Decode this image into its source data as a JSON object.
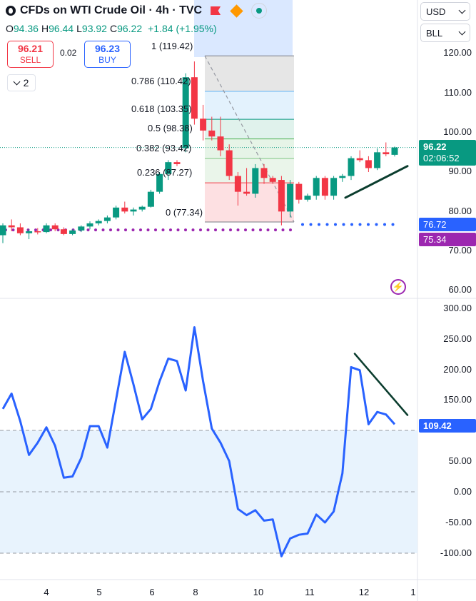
{
  "header": {
    "title": "CFDs on WTI Crude Oil · 4h · TVC",
    "ohlc": {
      "o_key": "O",
      "o_val": "94.36",
      "h_key": "H",
      "h_val": "96.44",
      "l_key": "L",
      "l_val": "93.92",
      "c_key": "C",
      "c_val": "96.22",
      "change": "+1.84 (+1.95%)"
    }
  },
  "trade": {
    "sell_price": "96.21",
    "sell_label": "SELL",
    "spread": "0.02",
    "buy_price": "96.23",
    "buy_label": "BUY"
  },
  "indicators_collapse": {
    "count": "2"
  },
  "top_right": {
    "currency": "USD",
    "unit": "BLL"
  },
  "colors": {
    "up": "#089981",
    "down": "#f23645",
    "accent": "#2962ff",
    "purple": "#9c27b0",
    "trend_line": "#0b3d2e"
  },
  "price_axis": {
    "labels": [
      "120.00",
      "110.00",
      "100.00",
      "90.00",
      "80.00",
      "70.00",
      "60.00"
    ],
    "last_price": "96.22",
    "countdown": "02:06:52",
    "blue_level": "76.72",
    "purple_level": "75.34"
  },
  "fib_levels": [
    {
      "label": "1 (119.42)",
      "color": "#787b86"
    },
    {
      "label": "0.786 (110.42)",
      "color": "#64b5f6"
    },
    {
      "label": "0.618 (103.35)",
      "color": "#089981"
    },
    {
      "label": "0.5 (98.38)",
      "color": "#4caf50"
    },
    {
      "label": "0.382 (93.42)",
      "color": "#81c784"
    },
    {
      "label": "0.236 (87.27)",
      "color": "#f23645"
    },
    {
      "label": "0 (77.34)",
      "color": "#787b86"
    }
  ],
  "oscillator": {
    "axis_labels": [
      "300.00",
      "250.00",
      "200.00",
      "150.00",
      "100.00",
      "50.00",
      "0.00",
      "-50.00",
      "-100.00"
    ],
    "value": "109.42",
    "series": [
      135,
      160,
      115,
      60,
      80,
      105,
      75,
      23,
      25,
      55,
      107,
      107,
      72,
      150,
      228,
      175,
      118,
      135,
      180,
      217,
      213,
      165,
      268,
      180,
      103,
      80,
      50,
      -28,
      -38,
      -30,
      -47,
      -45,
      -105,
      -76,
      -70,
      -68,
      -37,
      -50,
      -32,
      30,
      203,
      198,
      110,
      130,
      126,
      110
    ]
  },
  "time_axis": {
    "labels": [
      "4",
      "5",
      "6",
      "8",
      "10",
      "11",
      "12",
      "1"
    ]
  },
  "chart_data": {
    "type": "candlestick",
    "title": "CFDs on WTI Crude Oil · 4h · TVC",
    "ylim": [
      57,
      127
    ],
    "candles": [
      {
        "o": 74,
        "h": 77,
        "l": 72,
        "c": 76.5
      },
      {
        "o": 76.5,
        "h": 78,
        "l": 75,
        "c": 76
      },
      {
        "o": 76,
        "h": 77,
        "l": 74,
        "c": 74.5
      },
      {
        "o": 74.5,
        "h": 75.5,
        "l": 73,
        "c": 75
      },
      {
        "o": 75,
        "h": 75.8,
        "l": 74.2,
        "c": 74.8
      },
      {
        "o": 74.8,
        "h": 77,
        "l": 74.5,
        "c": 76.5
      },
      {
        "o": 76.5,
        "h": 77,
        "l": 75,
        "c": 75.5
      },
      {
        "o": 75.5,
        "h": 76,
        "l": 74,
        "c": 74.3
      },
      {
        "o": 74.3,
        "h": 75.5,
        "l": 74,
        "c": 75.2
      },
      {
        "o": 75.2,
        "h": 76.5,
        "l": 74.8,
        "c": 76.2
      },
      {
        "o": 76.2,
        "h": 77.5,
        "l": 75.5,
        "c": 77
      },
      {
        "o": 77,
        "h": 78,
        "l": 76.5,
        "c": 77.6
      },
      {
        "o": 77.6,
        "h": 79,
        "l": 77,
        "c": 78.5
      },
      {
        "o": 78.5,
        "h": 81.5,
        "l": 78,
        "c": 81
      },
      {
        "o": 81,
        "h": 82.5,
        "l": 79.5,
        "c": 80
      },
      {
        "o": 80,
        "h": 81,
        "l": 79,
        "c": 80.5
      },
      {
        "o": 80.5,
        "h": 81.5,
        "l": 80,
        "c": 81.2
      },
      {
        "o": 81.2,
        "h": 85.5,
        "l": 81,
        "c": 85
      },
      {
        "o": 85,
        "h": 90,
        "l": 84.5,
        "c": 89.5
      },
      {
        "o": 89.5,
        "h": 93,
        "l": 88,
        "c": 92.5
      },
      {
        "o": 92.5,
        "h": 93,
        "l": 91.5,
        "c": 92
      },
      {
        "o": 96,
        "h": 115,
        "l": 95,
        "c": 114
      },
      {
        "o": 114,
        "h": 118,
        "l": 102,
        "c": 103.5
      },
      {
        "o": 103.5,
        "h": 107,
        "l": 98,
        "c": 100.5
      },
      {
        "o": 100.5,
        "h": 104,
        "l": 98,
        "c": 99
      },
      {
        "o": 99,
        "h": 104,
        "l": 94,
        "c": 95.5
      },
      {
        "o": 95.5,
        "h": 97,
        "l": 88,
        "c": 89
      },
      {
        "o": 89,
        "h": 90,
        "l": 81.5,
        "c": 85
      },
      {
        "o": 85,
        "h": 91,
        "l": 84,
        "c": 84.5
      },
      {
        "o": 84.5,
        "h": 92,
        "l": 83.5,
        "c": 91
      },
      {
        "o": 91,
        "h": 92,
        "l": 87,
        "c": 88.5
      },
      {
        "o": 88.5,
        "h": 89,
        "l": 87,
        "c": 87.5
      },
      {
        "o": 88,
        "h": 89,
        "l": 76.5,
        "c": 80
      },
      {
        "o": 80,
        "h": 88,
        "l": 78.5,
        "c": 87
      },
      {
        "o": 87,
        "h": 87.5,
        "l": 82,
        "c": 83
      },
      {
        "o": 83,
        "h": 84.5,
        "l": 82.5,
        "c": 84
      },
      {
        "o": 84,
        "h": 89,
        "l": 83,
        "c": 88.5
      },
      {
        "o": 88.5,
        "h": 89,
        "l": 83,
        "c": 84
      },
      {
        "o": 84,
        "h": 89,
        "l": 83,
        "c": 88.5
      },
      {
        "o": 88.5,
        "h": 89.5,
        "l": 87.5,
        "c": 89
      },
      {
        "o": 89,
        "h": 94,
        "l": 88,
        "c": 93.5
      },
      {
        "o": 93.5,
        "h": 95.5,
        "l": 92.5,
        "c": 93
      },
      {
        "o": 93,
        "h": 94,
        "l": 90,
        "c": 91
      },
      {
        "o": 91,
        "h": 96,
        "l": 90.5,
        "c": 95
      },
      {
        "o": 95,
        "h": 97.5,
        "l": 94,
        "c": 94.5
      },
      {
        "o": 94.36,
        "h": 96.44,
        "l": 93.92,
        "c": 96.22
      }
    ]
  }
}
